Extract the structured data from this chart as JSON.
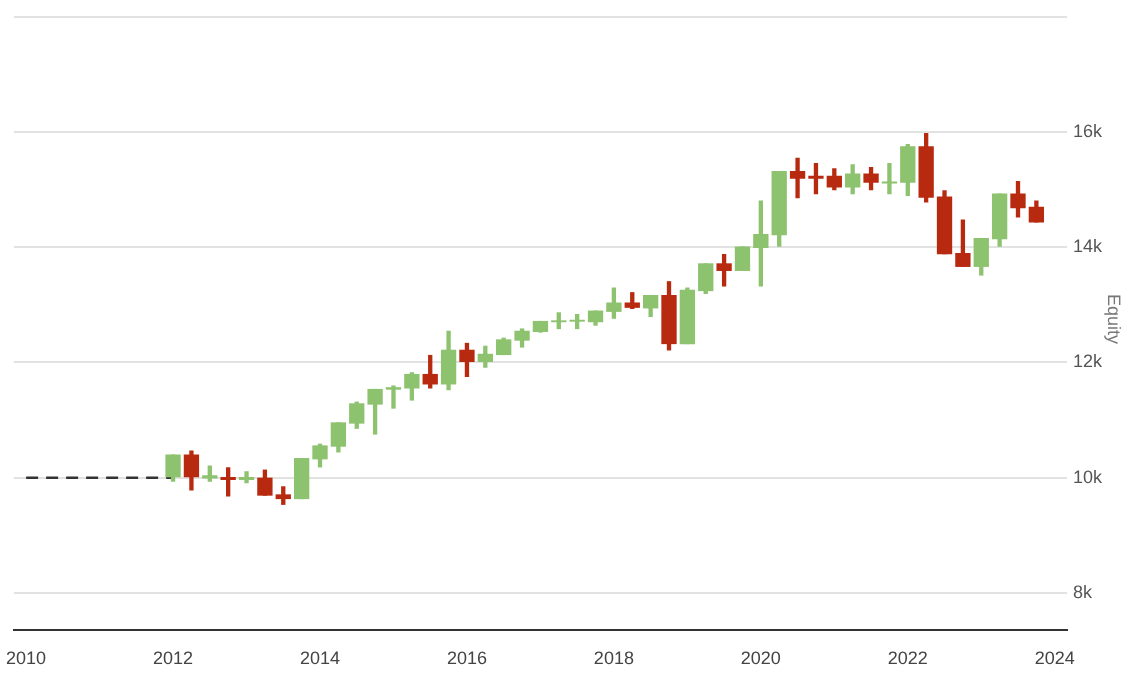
{
  "chart_data": {
    "type": "candlestick",
    "ylabel": "Equity",
    "x": [
      "2012-01",
      "2012-04",
      "2012-07",
      "2012-10",
      "2013-01",
      "2013-04",
      "2013-07",
      "2013-10",
      "2014-01",
      "2014-04",
      "2014-07",
      "2014-10",
      "2015-01",
      "2015-04",
      "2015-07",
      "2015-10",
      "2016-01",
      "2016-04",
      "2016-07",
      "2016-10",
      "2017-01",
      "2017-04",
      "2017-07",
      "2017-10",
      "2018-01",
      "2018-04",
      "2018-07",
      "2018-10",
      "2019-01",
      "2019-04",
      "2019-07",
      "2019-10",
      "2020-01",
      "2020-04",
      "2020-07",
      "2020-10",
      "2021-01",
      "2021-04",
      "2021-07",
      "2021-10",
      "2022-01",
      "2022-04",
      "2022-07",
      "2022-10",
      "2023-01",
      "2023-04",
      "2023-07",
      "2023-10"
    ],
    "ohlc": [
      [
        10020,
        10390,
        9940,
        10390
      ],
      [
        10390,
        10460,
        9790,
        10020
      ],
      [
        10000,
        10200,
        9940,
        10030
      ],
      [
        10000,
        10170,
        9685,
        9970
      ],
      [
        9970,
        10100,
        9915,
        10000
      ],
      [
        9990,
        10130,
        9700,
        9700
      ],
      [
        9700,
        9840,
        9540,
        9640
      ],
      [
        9640,
        10330,
        9640,
        10330
      ],
      [
        10330,
        10580,
        10190,
        10550
      ],
      [
        10550,
        10950,
        10450,
        10950
      ],
      [
        10950,
        11310,
        10860,
        11280
      ],
      [
        11280,
        11530,
        10760,
        11530
      ],
      [
        11540,
        11590,
        11210,
        11560
      ],
      [
        11560,
        11820,
        11350,
        11790
      ],
      [
        11790,
        12120,
        11560,
        11630
      ],
      [
        11630,
        12540,
        11530,
        12210
      ],
      [
        12210,
        12330,
        11760,
        12020
      ],
      [
        12020,
        12280,
        11920,
        12140
      ],
      [
        12140,
        12420,
        12140,
        12390
      ],
      [
        12390,
        12580,
        12270,
        12540
      ],
      [
        12540,
        12710,
        12530,
        12710
      ],
      [
        12710,
        12860,
        12590,
        12720
      ],
      [
        12720,
        12830,
        12590,
        12730
      ],
      [
        12710,
        12890,
        12650,
        12890
      ],
      [
        12890,
        13290,
        12770,
        13030
      ],
      [
        13030,
        13210,
        12940,
        12960
      ],
      [
        12950,
        13160,
        12800,
        13160
      ],
      [
        13160,
        13400,
        12220,
        12330
      ],
      [
        12330,
        13290,
        12330,
        13250
      ],
      [
        13250,
        13710,
        13200,
        13710
      ],
      [
        13710,
        13870,
        13330,
        13600
      ],
      [
        13600,
        14000,
        13600,
        14000
      ],
      [
        14000,
        14800,
        13330,
        14220
      ],
      [
        14220,
        15310,
        14020,
        15310
      ],
      [
        15310,
        15540,
        14860,
        15200
      ],
      [
        15230,
        15450,
        14930,
        15200
      ],
      [
        15230,
        15360,
        15000,
        15050
      ],
      [
        15050,
        15430,
        14930,
        15270
      ],
      [
        15270,
        15380,
        15000,
        15130
      ],
      [
        15120,
        15450,
        14930,
        15130
      ],
      [
        15130,
        15780,
        14900,
        15740
      ],
      [
        15740,
        15970,
        14790,
        14870
      ],
      [
        14870,
        14980,
        13890,
        13890
      ],
      [
        13890,
        14470,
        13670,
        13670
      ],
      [
        13670,
        14150,
        13520,
        14150
      ],
      [
        14150,
        14920,
        14020,
        14920
      ],
      [
        14920,
        15140,
        14530,
        14690
      ],
      [
        14690,
        14800,
        14440,
        14440
      ]
    ],
    "colors": [
      "#8dc26f",
      "#b72a10",
      "#8dc26f",
      "#b72a10",
      "#8dc26f",
      "#b72a10",
      "#b72a10",
      "#8dc26f",
      "#8dc26f",
      "#8dc26f",
      "#8dc26f",
      "#8dc26f",
      "#8dc26f",
      "#8dc26f",
      "#b72a10",
      "#8dc26f",
      "#b72a10",
      "#8dc26f",
      "#8dc26f",
      "#8dc26f",
      "#8dc26f",
      "#8dc26f",
      "#8dc26f",
      "#8dc26f",
      "#8dc26f",
      "#b72a10",
      "#8dc26f",
      "#b72a10",
      "#8dc26f",
      "#8dc26f",
      "#b72a10",
      "#8dc26f",
      "#8dc26f",
      "#8dc26f",
      "#b72a10",
      "#b72a10",
      "#b72a10",
      "#8dc26f",
      "#b72a10",
      "#8dc26f",
      "#8dc26f",
      "#b72a10",
      "#b72a10",
      "#b72a10",
      "#8dc26f",
      "#8dc26f",
      "#b72a10",
      "#b72a10"
    ],
    "series": [
      {
        "type": "line",
        "x": [
          "2010-01",
          "2012-01"
        ],
        "values": [
          10000,
          10000
        ],
        "color": "#333333",
        "line_style": "dashed"
      }
    ],
    "xlim": [
      "2009-11",
      "2024-03"
    ],
    "xticks": [
      {
        "value": "2010",
        "label": "2010"
      },
      {
        "value": "2012",
        "label": "2012"
      },
      {
        "value": "2014",
        "label": "2014"
      },
      {
        "value": "2016",
        "label": "2016"
      },
      {
        "value": "2018",
        "label": "2018"
      },
      {
        "value": "2020",
        "label": "2020"
      },
      {
        "value": "2022",
        "label": "2022"
      },
      {
        "value": "2024",
        "label": "2024"
      }
    ],
    "ylim": [
      7350,
      18000
    ],
    "yticks": [
      {
        "value": 8000,
        "label": "8k"
      },
      {
        "value": 10000,
        "label": "10k"
      },
      {
        "value": 12000,
        "label": "12k"
      },
      {
        "value": 14000,
        "label": "14k"
      },
      {
        "value": 16000,
        "label": "16k"
      },
      {
        "value": 18000,
        "label": null
      }
    ],
    "grid": "y",
    "legend": false
  }
}
